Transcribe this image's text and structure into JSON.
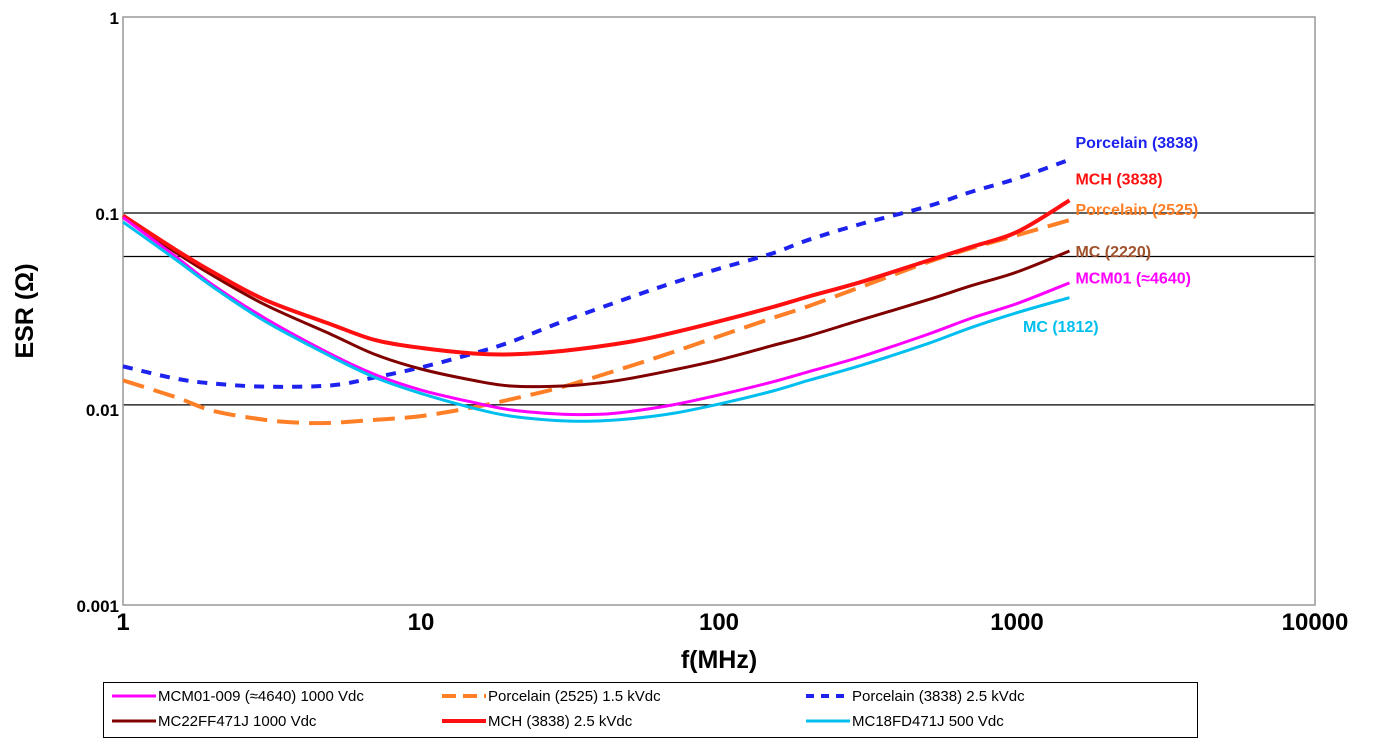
{
  "chart_data": {
    "type": "line",
    "title": "",
    "xlabel": "f(MHz)",
    "ylabel": "ESR (Ω)",
    "x_scale": "log",
    "y_scale": "log",
    "xlim": [
      1,
      10000
    ],
    "ylim": [
      0.001,
      1
    ],
    "x_ticks": [
      "1",
      "10",
      "100",
      "1000",
      "10000"
    ],
    "y_ticks": [
      "0.001",
      "0.01",
      "0.1",
      "1"
    ],
    "reference_lines_y": [
      0.1,
      0.06,
      0.0105
    ],
    "legend_position": "bottom",
    "series": [
      {
        "name": "MCM01-009 (≈4640) 1000 Vdc",
        "color": "#ff00ff",
        "style": "solid",
        "points": [
          [
            1,
            0.095
          ],
          [
            1.5,
            0.06
          ],
          [
            2,
            0.043
          ],
          [
            3,
            0.029
          ],
          [
            5,
            0.019
          ],
          [
            7,
            0.015
          ],
          [
            10,
            0.0125
          ],
          [
            15,
            0.0108
          ],
          [
            20,
            0.0099
          ],
          [
            30,
            0.0094
          ],
          [
            40,
            0.0094
          ],
          [
            50,
            0.0097
          ],
          [
            70,
            0.0105
          ],
          [
            100,
            0.0118
          ],
          [
            150,
            0.0137
          ],
          [
            200,
            0.0155
          ],
          [
            300,
            0.0185
          ],
          [
            500,
            0.024
          ],
          [
            700,
            0.029
          ],
          [
            1000,
            0.0345
          ],
          [
            1500,
            0.044
          ]
        ]
      },
      {
        "name": "Porcelain (2525) 1.5 kVdc",
        "color": "#ff7f27",
        "style": "dashed",
        "points": [
          [
            1,
            0.014
          ],
          [
            1.5,
            0.0115
          ],
          [
            2,
            0.0098
          ],
          [
            3,
            0.0088
          ],
          [
            4,
            0.0085
          ],
          [
            5,
            0.0085
          ],
          [
            7,
            0.0088
          ],
          [
            10,
            0.0092
          ],
          [
            15,
            0.0102
          ],
          [
            20,
            0.0112
          ],
          [
            30,
            0.013
          ],
          [
            50,
            0.0165
          ],
          [
            70,
            0.0195
          ],
          [
            100,
            0.0235
          ],
          [
            150,
            0.029
          ],
          [
            200,
            0.0335
          ],
          [
            300,
            0.042
          ],
          [
            500,
            0.056
          ],
          [
            700,
            0.066
          ],
          [
            1000,
            0.077
          ],
          [
            1500,
            0.092
          ]
        ]
      },
      {
        "name": "Porcelain (3838) 2.5 kVdc",
        "color": "#1e22ee",
        "style": "dotted",
        "points": [
          [
            1,
            0.0165
          ],
          [
            1.5,
            0.0143
          ],
          [
            2,
            0.0135
          ],
          [
            3,
            0.013
          ],
          [
            5,
            0.0132
          ],
          [
            7,
            0.0145
          ],
          [
            10,
            0.0163
          ],
          [
            15,
            0.0192
          ],
          [
            20,
            0.022
          ],
          [
            30,
            0.028
          ],
          [
            50,
            0.037
          ],
          [
            70,
            0.044
          ],
          [
            100,
            0.052
          ],
          [
            150,
            0.062
          ],
          [
            200,
            0.073
          ],
          [
            300,
            0.088
          ],
          [
            500,
            0.108
          ],
          [
            700,
            0.128
          ],
          [
            1000,
            0.15
          ],
          [
            1500,
            0.187
          ]
        ]
      },
      {
        "name": "MC22FF471J  1000 Vdc",
        "color": "#800000",
        "style": "solid",
        "points": [
          [
            1,
            0.095
          ],
          [
            1.5,
            0.063
          ],
          [
            2,
            0.048
          ],
          [
            3,
            0.034
          ],
          [
            5,
            0.024
          ],
          [
            7,
            0.019
          ],
          [
            10,
            0.016
          ],
          [
            15,
            0.014
          ],
          [
            20,
            0.0131
          ],
          [
            30,
            0.0131
          ],
          [
            40,
            0.0136
          ],
          [
            50,
            0.0143
          ],
          [
            70,
            0.0158
          ],
          [
            100,
            0.0178
          ],
          [
            150,
            0.021
          ],
          [
            200,
            0.0236
          ],
          [
            300,
            0.0285
          ],
          [
            500,
            0.036
          ],
          [
            700,
            0.0425
          ],
          [
            1000,
            0.05
          ],
          [
            1500,
            0.064
          ]
        ]
      },
      {
        "name": "MCH (3838)  2.5  kVdc",
        "color": "#ff1010",
        "style": "solid",
        "points": [
          [
            1,
            0.097
          ],
          [
            1.5,
            0.065
          ],
          [
            2,
            0.05
          ],
          [
            3,
            0.036
          ],
          [
            5,
            0.027
          ],
          [
            7,
            0.0225
          ],
          [
            10,
            0.0205
          ],
          [
            15,
            0.0192
          ],
          [
            20,
            0.019
          ],
          [
            30,
            0.0198
          ],
          [
            50,
            0.022
          ],
          [
            70,
            0.0245
          ],
          [
            100,
            0.028
          ],
          [
            150,
            0.033
          ],
          [
            200,
            0.0375
          ],
          [
            300,
            0.0445
          ],
          [
            500,
            0.057
          ],
          [
            700,
            0.067
          ],
          [
            1000,
            0.08
          ],
          [
            1500,
            0.116
          ]
        ]
      },
      {
        "name": "MC18FD471J  500 Vdc",
        "color": "#00bfef",
        "style": "solid",
        "points": [
          [
            1,
            0.09
          ],
          [
            1.5,
            0.058
          ],
          [
            2,
            0.042
          ],
          [
            3,
            0.028
          ],
          [
            5,
            0.0185
          ],
          [
            7,
            0.0145
          ],
          [
            10,
            0.012
          ],
          [
            15,
            0.0101
          ],
          [
            20,
            0.0092
          ],
          [
            30,
            0.0087
          ],
          [
            40,
            0.0087
          ],
          [
            50,
            0.0089
          ],
          [
            70,
            0.0095
          ],
          [
            100,
            0.0106
          ],
          [
            150,
            0.0123
          ],
          [
            200,
            0.014
          ],
          [
            300,
            0.0167
          ],
          [
            500,
            0.0215
          ],
          [
            700,
            0.026
          ],
          [
            1000,
            0.031
          ],
          [
            1500,
            0.037
          ]
        ]
      }
    ],
    "annotations": [
      {
        "text": "Porcelain (3838)",
        "color": "#1e22ee",
        "x": 1500,
        "y": 0.23
      },
      {
        "text": "MCH (3838)",
        "color": "#ff1010",
        "x": 1500,
        "y": 0.15
      },
      {
        "text": "Porcelain (2525)",
        "color": "#ff7f27",
        "x": 1500,
        "y": 0.105
      },
      {
        "text": "MC (2220)",
        "color": "#a0522d",
        "x": 1500,
        "y": 0.064
      },
      {
        "text": "MCM01 (≈4640)",
        "color": "#ff00ff",
        "x": 1500,
        "y": 0.047
      },
      {
        "text": "MC (1812)",
        "color": "#00bfef",
        "x": 1000,
        "y": 0.0265
      }
    ]
  }
}
